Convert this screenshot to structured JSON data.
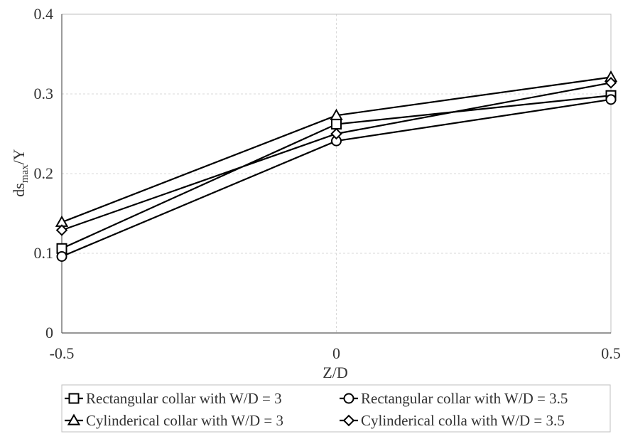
{
  "chart_data": {
    "type": "line",
    "xlabel": "Z/D",
    "ylabel": {
      "main": "ds",
      "sub": "max",
      "suffix": "/Y"
    },
    "x": [
      -0.5,
      0,
      0.5
    ],
    "x_tick_labels": [
      "-0.5",
      "0",
      "0.5"
    ],
    "xlim": [
      -0.5,
      0.5
    ],
    "ylim": [
      0,
      0.4
    ],
    "y_ticks": [
      0,
      0.1,
      0.2,
      0.3,
      0.4
    ],
    "y_tick_labels": [
      "0",
      "0.1",
      "0.2",
      "0.3",
      "0.4"
    ],
    "grid": true,
    "legend_position": "bottom",
    "series": [
      {
        "name": "Rectangular collar with W/D = 3",
        "marker": "square",
        "values": [
          0.106,
          0.262,
          0.298
        ]
      },
      {
        "name": "Rectangular collar with W/D = 3.5",
        "marker": "circle",
        "values": [
          0.096,
          0.241,
          0.293
        ]
      },
      {
        "name": "Cylinderical collar with W/D = 3",
        "marker": "triangle",
        "values": [
          0.139,
          0.273,
          0.321
        ]
      },
      {
        "name": "Cylinderical colla with W/D = 3.5",
        "marker": "diamond",
        "values": [
          0.129,
          0.25,
          0.314
        ]
      }
    ]
  },
  "colors": {
    "line": "#000000",
    "grid": "#d9d9d9",
    "frame": "#bfbfbf",
    "text": "#333333"
  }
}
